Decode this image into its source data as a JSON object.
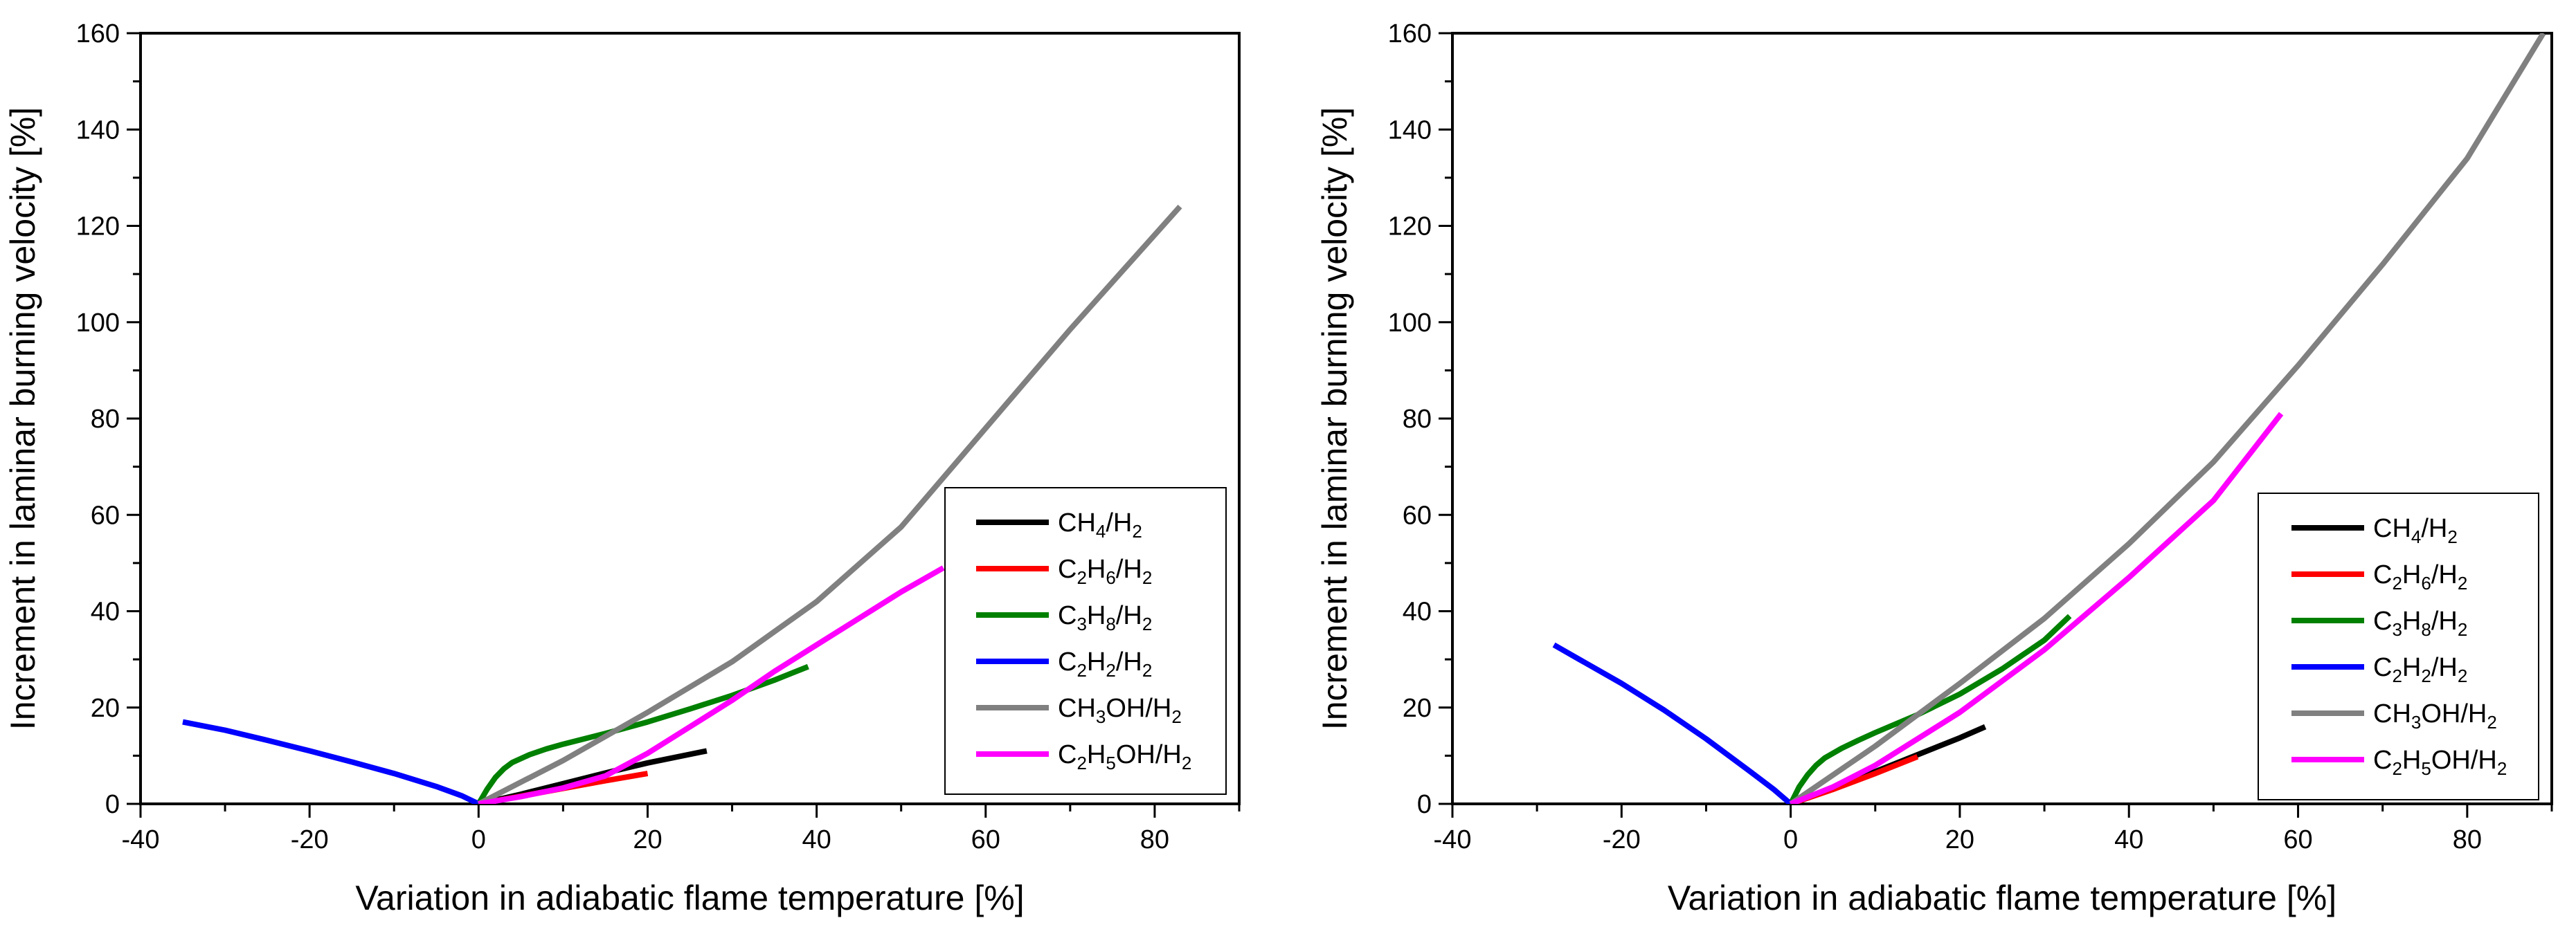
{
  "chart_data": [
    {
      "type": "line",
      "xlabel": "Variation in adiabatic flame temperature [%]",
      "ylabel": "Increment in laminar burning velocity [%]",
      "xlim": [
        -40,
        90
      ],
      "ylim": [
        0,
        160
      ],
      "xticks": [
        -40,
        -20,
        0,
        20,
        40,
        60,
        80
      ],
      "yticks": [
        0,
        20,
        40,
        60,
        80,
        100,
        120,
        140,
        160
      ],
      "legend_position": "lower-right",
      "series": [
        {
          "name": "CH4/H2",
          "display": [
            [
              "CH",
              ""
            ],
            [
              "4",
              "sub"
            ],
            [
              "/H",
              ""
            ],
            [
              "2",
              "sub"
            ]
          ],
          "color": "#000000",
          "x": [
            0,
            5,
            10,
            15,
            20,
            27
          ],
          "y": [
            0,
            2,
            4.2,
            6.4,
            8.5,
            11
          ]
        },
        {
          "name": "C2H6/H2",
          "display": [
            [
              "C",
              ""
            ],
            [
              "2",
              "sub"
            ],
            [
              "H",
              ""
            ],
            [
              "6",
              "sub"
            ],
            [
              "/H",
              ""
            ],
            [
              "2",
              "sub"
            ]
          ],
          "color": "#ff0000",
          "x": [
            0,
            5,
            10,
            15,
            20
          ],
          "y": [
            0,
            1.6,
            3.2,
            4.8,
            6.3
          ]
        },
        {
          "name": "C3H8/H2",
          "display": [
            [
              "C",
              ""
            ],
            [
              "3",
              "sub"
            ],
            [
              "H",
              ""
            ],
            [
              "8",
              "sub"
            ],
            [
              "/H",
              ""
            ],
            [
              "2",
              "sub"
            ]
          ],
          "color": "#008000",
          "x": [
            0,
            1,
            2,
            3,
            4,
            6,
            8,
            10,
            15,
            20,
            25,
            30,
            35,
            39
          ],
          "y": [
            0,
            3,
            5.5,
            7.3,
            8.6,
            10.2,
            11.4,
            12.4,
            14.6,
            17,
            19.7,
            22.5,
            25.7,
            28.5
          ]
        },
        {
          "name": "C2H2/H2",
          "display": [
            [
              "C",
              ""
            ],
            [
              "2",
              "sub"
            ],
            [
              "H",
              ""
            ],
            [
              "2",
              "sub"
            ],
            [
              "/H",
              ""
            ],
            [
              "2",
              "sub"
            ]
          ],
          "color": "#0000ff",
          "x": [
            -35,
            -30,
            -25,
            -20,
            -15,
            -10,
            -5,
            -2,
            0
          ],
          "y": [
            17,
            15.3,
            13.2,
            11,
            8.7,
            6.3,
            3.6,
            1.7,
            0
          ]
        },
        {
          "name": "CH3OH/H2",
          "display": [
            [
              "CH",
              ""
            ],
            [
              "3",
              "sub"
            ],
            [
              "OH/H",
              ""
            ],
            [
              "2",
              "sub"
            ]
          ],
          "color": "#808080",
          "x": [
            0,
            10,
            20,
            30,
            40,
            50,
            60,
            70,
            83
          ],
          "y": [
            0,
            9,
            19,
            29.5,
            42,
            57.5,
            78,
            98.5,
            124
          ]
        },
        {
          "name": "C2H5OH/H2",
          "display": [
            [
              "C",
              ""
            ],
            [
              "2",
              "sub"
            ],
            [
              "H",
              ""
            ],
            [
              "5",
              "sub"
            ],
            [
              "OH/H",
              ""
            ],
            [
              "2",
              "sub"
            ]
          ],
          "color": "#ff00ff",
          "x": [
            0,
            5,
            10,
            15,
            20,
            25,
            30,
            35,
            40,
            45,
            50,
            55
          ],
          "y": [
            0,
            1.5,
            3.3,
            5.8,
            10.5,
            16,
            21.5,
            27.5,
            33,
            38.5,
            44,
            49
          ]
        }
      ]
    },
    {
      "type": "line",
      "xlabel": "Variation in adiabatic flame temperature [%]",
      "ylabel": "Increment in laminar burning velocity [%]",
      "xlim": [
        -40,
        90
      ],
      "ylim": [
        0,
        160
      ],
      "xticks": [
        -40,
        -20,
        0,
        20,
        40,
        60,
        80
      ],
      "yticks": [
        0,
        20,
        40,
        60,
        80,
        100,
        120,
        140,
        160
      ],
      "legend_position": "lower-right",
      "series": [
        {
          "name": "CH4/H2",
          "display": [
            [
              "CH",
              ""
            ],
            [
              "4",
              "sub"
            ],
            [
              "/H",
              ""
            ],
            [
              "2",
              "sub"
            ]
          ],
          "color": "#000000",
          "x": [
            0,
            5,
            10,
            15,
            20,
            23
          ],
          "y": [
            0,
            3.3,
            6.7,
            10.2,
            13.7,
            16
          ]
        },
        {
          "name": "C2H6/H2",
          "display": [
            [
              "C",
              ""
            ],
            [
              "2",
              "sub"
            ],
            [
              "H",
              ""
            ],
            [
              "6",
              "sub"
            ],
            [
              "/H",
              ""
            ],
            [
              "2",
              "sub"
            ]
          ],
          "color": "#ff0000",
          "x": [
            0,
            5,
            10,
            15
          ],
          "y": [
            0,
            3,
            6.3,
            9.8
          ]
        },
        {
          "name": "C3H8/H2",
          "display": [
            [
              "C",
              ""
            ],
            [
              "3",
              "sub"
            ],
            [
              "H",
              ""
            ],
            [
              "8",
              "sub"
            ],
            [
              "/H",
              ""
            ],
            [
              "2",
              "sub"
            ]
          ],
          "color": "#008000",
          "x": [
            0,
            1,
            2,
            3,
            4,
            6,
            8,
            10,
            15,
            20,
            25,
            30,
            33
          ],
          "y": [
            0,
            3.5,
            6,
            8,
            9.5,
            11.5,
            13.2,
            14.8,
            18.5,
            22.8,
            28,
            34,
            39
          ]
        },
        {
          "name": "C2H2/H2",
          "display": [
            [
              "C",
              ""
            ],
            [
              "2",
              "sub"
            ],
            [
              "H",
              ""
            ],
            [
              "2",
              "sub"
            ],
            [
              "/H",
              ""
            ],
            [
              "2",
              "sub"
            ]
          ],
          "color": "#0000ff",
          "x": [
            -28,
            -25,
            -20,
            -15,
            -10,
            -5,
            -2,
            0
          ],
          "y": [
            33,
            30,
            25,
            19.5,
            13.5,
            7,
            3,
            0
          ]
        },
        {
          "name": "CH3OH/H2",
          "display": [
            [
              "CH",
              ""
            ],
            [
              "3",
              "sub"
            ],
            [
              "OH/H",
              ""
            ],
            [
              "2",
              "sub"
            ]
          ],
          "color": "#808080",
          "x": [
            0,
            10,
            20,
            30,
            40,
            50,
            60,
            70,
            80,
            89
          ],
          "y": [
            0,
            12,
            25,
            38.5,
            54,
            71,
            91,
            112,
            134,
            160
          ]
        },
        {
          "name": "C2H5OH/H2",
          "display": [
            [
              "C",
              ""
            ],
            [
              "2",
              "sub"
            ],
            [
              "H",
              ""
            ],
            [
              "5",
              "sub"
            ],
            [
              "OH/H",
              ""
            ],
            [
              "2",
              "sub"
            ]
          ],
          "color": "#ff00ff",
          "x": [
            0,
            5,
            10,
            20,
            30,
            40,
            50,
            58
          ],
          "y": [
            0,
            3.5,
            8,
            19,
            32,
            47,
            63,
            81
          ]
        }
      ]
    }
  ]
}
